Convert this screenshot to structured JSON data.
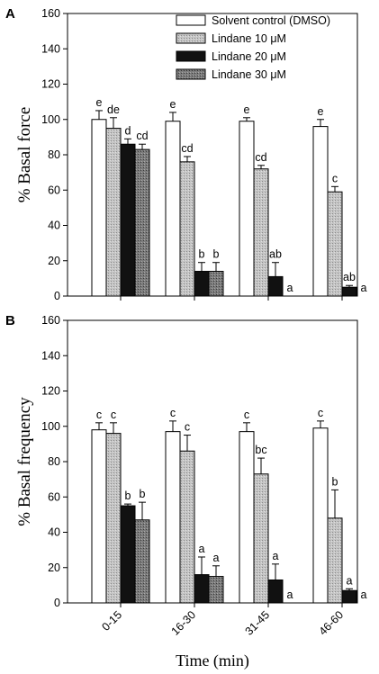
{
  "chart_data": [
    {
      "type": "bar",
      "panel_label": "A",
      "ylabel": "% Basal force",
      "xlabel": "",
      "ylim": [
        0,
        160
      ],
      "yticks": [
        0,
        20,
        40,
        60,
        80,
        100,
        120,
        140,
        160
      ],
      "categories": [
        "0-15",
        "16-30",
        "31-45",
        "46-60"
      ],
      "show_category_labels": false,
      "legend": {
        "position": "top-right"
      },
      "series": [
        {
          "name": "Solvent control (DMSO)",
          "pattern": "white",
          "values": [
            100,
            99,
            99,
            96
          ],
          "errors": [
            5,
            5,
            2,
            4
          ],
          "labels": [
            "e",
            "e",
            "e",
            "e"
          ]
        },
        {
          "name": "Lindane 10 μM",
          "pattern": "light-gray",
          "values": [
            95,
            76,
            72,
            59
          ],
          "errors": [
            6,
            3,
            2,
            3
          ],
          "labels": [
            "de",
            "cd",
            "cd",
            "c"
          ]
        },
        {
          "name": "Lindane 20 μM",
          "pattern": "black",
          "values": [
            86,
            14,
            11,
            5
          ],
          "errors": [
            3,
            5,
            8,
            1
          ],
          "labels": [
            "d",
            "b",
            "ab",
            "ab"
          ]
        },
        {
          "name": "Lindane 30 μM",
          "pattern": "dark-gray",
          "values": [
            83,
            14,
            0,
            0
          ],
          "errors": [
            3,
            5,
            0,
            0
          ],
          "labels": [
            "cd",
            "b",
            "a",
            "a"
          ]
        }
      ]
    },
    {
      "type": "bar",
      "panel_label": "B",
      "ylabel": "% Basal frequency",
      "xlabel": "Time (min)",
      "ylim": [
        0,
        160
      ],
      "yticks": [
        0,
        20,
        40,
        60,
        80,
        100,
        120,
        140,
        160
      ],
      "categories": [
        "0-15",
        "16-30",
        "31-45",
        "46-60"
      ],
      "show_category_labels": true,
      "series": [
        {
          "name": "Solvent control (DMSO)",
          "pattern": "white",
          "values": [
            98,
            97,
            97,
            99
          ],
          "errors": [
            4,
            6,
            5,
            4
          ],
          "labels": [
            "c",
            "c",
            "c",
            "c"
          ]
        },
        {
          "name": "Lindane 10 μM",
          "pattern": "light-gray",
          "values": [
            96,
            86,
            73,
            48
          ],
          "errors": [
            6,
            9,
            9,
            16
          ],
          "labels": [
            "c",
            "c",
            "bc",
            "b"
          ]
        },
        {
          "name": "Lindane 20 μM",
          "pattern": "black",
          "values": [
            55,
            16,
            13,
            7
          ],
          "errors": [
            1,
            10,
            9,
            1
          ],
          "labels": [
            "b",
            "a",
            "a",
            "a"
          ]
        },
        {
          "name": "Lindane 30 μM",
          "pattern": "dark-gray",
          "values": [
            47,
            15,
            0,
            0
          ],
          "errors": [
            10,
            6,
            0,
            0
          ],
          "labels": [
            "b",
            "a",
            "a",
            "a"
          ]
        }
      ]
    }
  ],
  "colors": {
    "white": "#ffffff",
    "light-gray": "#bdbdbd",
    "black": "#111111",
    "dark-gray": "#7a7a7a"
  }
}
